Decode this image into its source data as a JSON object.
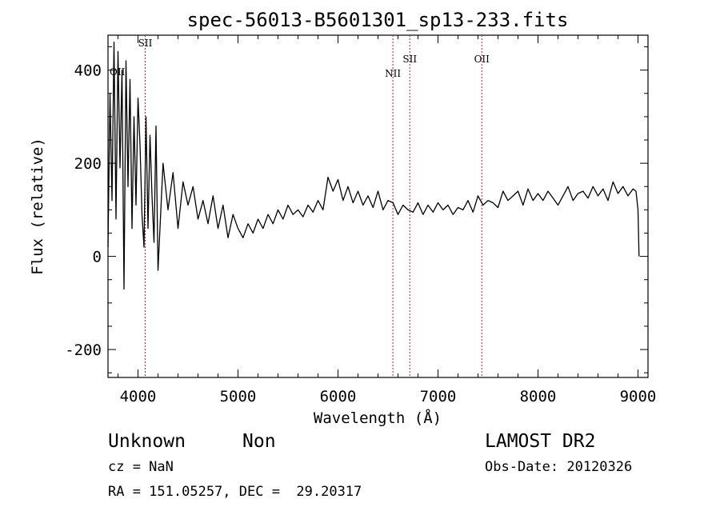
{
  "chart_data": {
    "type": "line",
    "title": "spec-56013-B5601301_sp13-233.fits",
    "xlabel": "Wavelength (Å)",
    "ylabel": "Flux (relative)",
    "xlim": [
      3700,
      9100
    ],
    "ylim": [
      -260,
      475
    ],
    "xticks": [
      4000,
      5000,
      6000,
      7000,
      8000,
      9000
    ],
    "yticks": [
      -200,
      0,
      200,
      400
    ],
    "grid": false,
    "series": [
      {
        "color": "#000000",
        "x": [
          3700,
          3720,
          3740,
          3760,
          3780,
          3800,
          3820,
          3840,
          3860,
          3880,
          3900,
          3920,
          3940,
          3960,
          3980,
          4000,
          4020,
          4040,
          4060,
          4080,
          4100,
          4120,
          4140,
          4160,
          4180,
          4200,
          4250,
          4300,
          4350,
          4400,
          4450,
          4500,
          4550,
          4600,
          4650,
          4700,
          4750,
          4800,
          4850,
          4900,
          4950,
          5000,
          5050,
          5100,
          5150,
          5200,
          5250,
          5300,
          5350,
          5400,
          5450,
          5500,
          5550,
          5600,
          5650,
          5700,
          5750,
          5800,
          5850,
          5900,
          5950,
          6000,
          6050,
          6100,
          6150,
          6200,
          6250,
          6300,
          6350,
          6400,
          6450,
          6500,
          6550,
          6600,
          6650,
          6700,
          6750,
          6800,
          6850,
          6900,
          6950,
          7000,
          7050,
          7100,
          7150,
          7200,
          7250,
          7300,
          7350,
          7400,
          7450,
          7500,
          7550,
          7600,
          7650,
          7700,
          7750,
          7800,
          7850,
          7900,
          7950,
          8000,
          8050,
          8100,
          8150,
          8200,
          8250,
          8300,
          8350,
          8400,
          8450,
          8500,
          8550,
          8600,
          8650,
          8700,
          8750,
          8800,
          8850,
          8900,
          8950,
          8980,
          9000,
          9010
        ],
        "y": [
          20,
          350,
          120,
          460,
          80,
          440,
          190,
          400,
          -70,
          420,
          150,
          380,
          60,
          300,
          110,
          340,
          240,
          90,
          20,
          300,
          60,
          260,
          130,
          30,
          280,
          -30,
          200,
          100,
          180,
          60,
          160,
          110,
          150,
          80,
          120,
          70,
          130,
          60,
          110,
          40,
          90,
          60,
          40,
          70,
          50,
          80,
          60,
          90,
          70,
          100,
          80,
          110,
          90,
          100,
          85,
          110,
          95,
          120,
          100,
          170,
          140,
          165,
          120,
          150,
          115,
          140,
          110,
          130,
          105,
          140,
          100,
          120,
          115,
          90,
          110,
          100,
          95,
          115,
          90,
          110,
          95,
          115,
          100,
          110,
          90,
          105,
          100,
          120,
          95,
          130,
          110,
          120,
          115,
          105,
          140,
          120,
          130,
          140,
          110,
          145,
          120,
          135,
          120,
          140,
          125,
          110,
          130,
          150,
          120,
          135,
          140,
          125,
          150,
          130,
          145,
          120,
          160,
          135,
          150,
          130,
          145,
          140,
          100,
          0
        ]
      }
    ],
    "vlines": [
      {
        "x": 4072,
        "label": "SII",
        "color": "#b22222"
      },
      {
        "x": 6549,
        "label": "NII",
        "color": "#b22222"
      },
      {
        "x": 6718,
        "label": "SII",
        "color": "#b22222"
      },
      {
        "x": 7438,
        "label": "OII",
        "color": "#b22222"
      }
    ],
    "edge_label": "OII"
  },
  "info": {
    "class_label": "Unknown",
    "subclass_label": "Non",
    "redshift": "cz = NaN",
    "coords": "RA = 151.05257, DEC =  29.20317",
    "survey": "LAMOST DR2",
    "obs_date": "Obs-Date: 20120326"
  }
}
